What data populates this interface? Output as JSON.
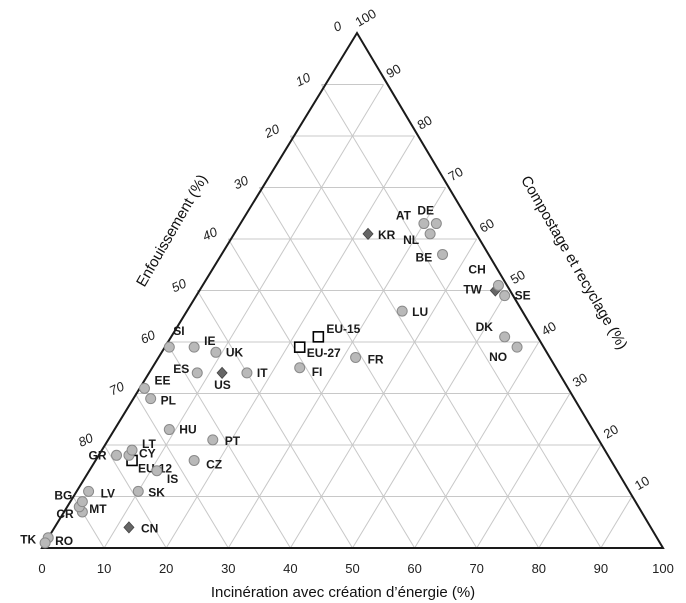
{
  "chart_data": {
    "type": "ternary-scatter",
    "axes": {
      "bottom": {
        "label": "Incinération avec création d’énergie (%)",
        "ticks": [
          "0",
          "10",
          "20",
          "30",
          "40",
          "50",
          "60",
          "70",
          "80",
          "90",
          "100"
        ]
      },
      "left": {
        "label": "Enfouissement (%)",
        "ticks": [
          "0",
          "10",
          "20",
          "30",
          "40",
          "50",
          "60",
          "70",
          "80"
        ]
      },
      "right": {
        "label": "Compostage et recyclage (%)",
        "ticks": [
          "10",
          "20",
          "30",
          "40",
          "50",
          "60",
          "70",
          "80",
          "90",
          "100"
        ]
      }
    },
    "grid": true,
    "marker_types": {
      "country": "circle",
      "region": "square",
      "non_eu": "diamond"
    },
    "points": [
      {
        "label": "TK",
        "incineration": 0,
        "compostage": 2,
        "marker": "circle"
      },
      {
        "label": "RO",
        "incineration": 0,
        "compostage": 1,
        "marker": "circle"
      },
      {
        "label": "CR",
        "incineration": 3,
        "compostage": 7,
        "marker": "circle"
      },
      {
        "label": "MT",
        "incineration": 2,
        "compostage": 8,
        "marker": "circle"
      },
      {
        "label": "BG",
        "incineration": 2,
        "compostage": 9,
        "marker": "circle"
      },
      {
        "label": "LV",
        "incineration": 2,
        "compostage": 11,
        "marker": "circle"
      },
      {
        "label": "EU-12",
        "incineration": 6,
        "compostage": 17,
        "marker": "square"
      },
      {
        "label": "GR",
        "incineration": 3,
        "compostage": 18,
        "marker": "circle"
      },
      {
        "label": "CY",
        "incineration": 5,
        "compostage": 18,
        "marker": "circle"
      },
      {
        "label": "LT",
        "incineration": 5,
        "compostage": 19,
        "marker": "circle"
      },
      {
        "label": "SK",
        "incineration": 10,
        "compostage": 11,
        "marker": "circle"
      },
      {
        "label": "CN",
        "incineration": 12,
        "compostage": 4,
        "marker": "diamond"
      },
      {
        "label": "IS",
        "incineration": 11,
        "compostage": 15,
        "marker": "circle"
      },
      {
        "label": "CZ",
        "incineration": 16,
        "compostage": 17,
        "marker": "circle"
      },
      {
        "label": "HU",
        "incineration": 9,
        "compostage": 23,
        "marker": "circle"
      },
      {
        "label": "PT",
        "incineration": 17,
        "compostage": 21,
        "marker": "circle"
      },
      {
        "label": "PL",
        "incineration": 3,
        "compostage": 29,
        "marker": "circle"
      },
      {
        "label": "EE",
        "incineration": 1,
        "compostage": 31,
        "marker": "circle"
      },
      {
        "label": "ES",
        "incineration": 8,
        "compostage": 34,
        "marker": "circle"
      },
      {
        "label": "US",
        "incineration": 12,
        "compostage": 34,
        "marker": "diamond"
      },
      {
        "label": "IT",
        "incineration": 16,
        "compostage": 34,
        "marker": "circle"
      },
      {
        "label": "SI",
        "incineration": 1,
        "compostage": 39,
        "marker": "circle"
      },
      {
        "label": "IE",
        "incineration": 5,
        "compostage": 39,
        "marker": "circle"
      },
      {
        "label": "UK",
        "incineration": 9,
        "compostage": 38,
        "marker": "circle"
      },
      {
        "label": "FI",
        "incineration": 24,
        "compostage": 35,
        "marker": "circle"
      },
      {
        "label": "EU-27",
        "incineration": 22,
        "compostage": 39,
        "marker": "square"
      },
      {
        "label": "EU-15",
        "incineration": 24,
        "compostage": 41,
        "marker": "square"
      },
      {
        "label": "FR",
        "incineration": 32,
        "compostage": 37,
        "marker": "circle"
      },
      {
        "label": "LU",
        "incineration": 35,
        "compostage": 46,
        "marker": "circle"
      },
      {
        "label": "KR",
        "incineration": 22,
        "compostage": 61,
        "marker": "diamond"
      },
      {
        "label": "DK",
        "incineration": 54,
        "compostage": 41,
        "marker": "circle"
      },
      {
        "label": "NO",
        "incineration": 57,
        "compostage": 39,
        "marker": "circle"
      },
      {
        "label": "SE",
        "incineration": 50,
        "compostage": 49,
        "marker": "circle"
      },
      {
        "label": "TW",
        "incineration": 48,
        "compostage": 50,
        "marker": "diamond"
      },
      {
        "label": "CH",
        "incineration": 48,
        "compostage": 51,
        "marker": "circle"
      },
      {
        "label": "BE",
        "incineration": 36,
        "compostage": 57,
        "marker": "circle"
      },
      {
        "label": "NL",
        "incineration": 32,
        "compostage": 61,
        "marker": "circle"
      },
      {
        "label": "AT",
        "incineration": 30,
        "compostage": 63,
        "marker": "circle"
      },
      {
        "label": "DE",
        "incineration": 32,
        "compostage": 63,
        "marker": "circle"
      }
    ]
  }
}
